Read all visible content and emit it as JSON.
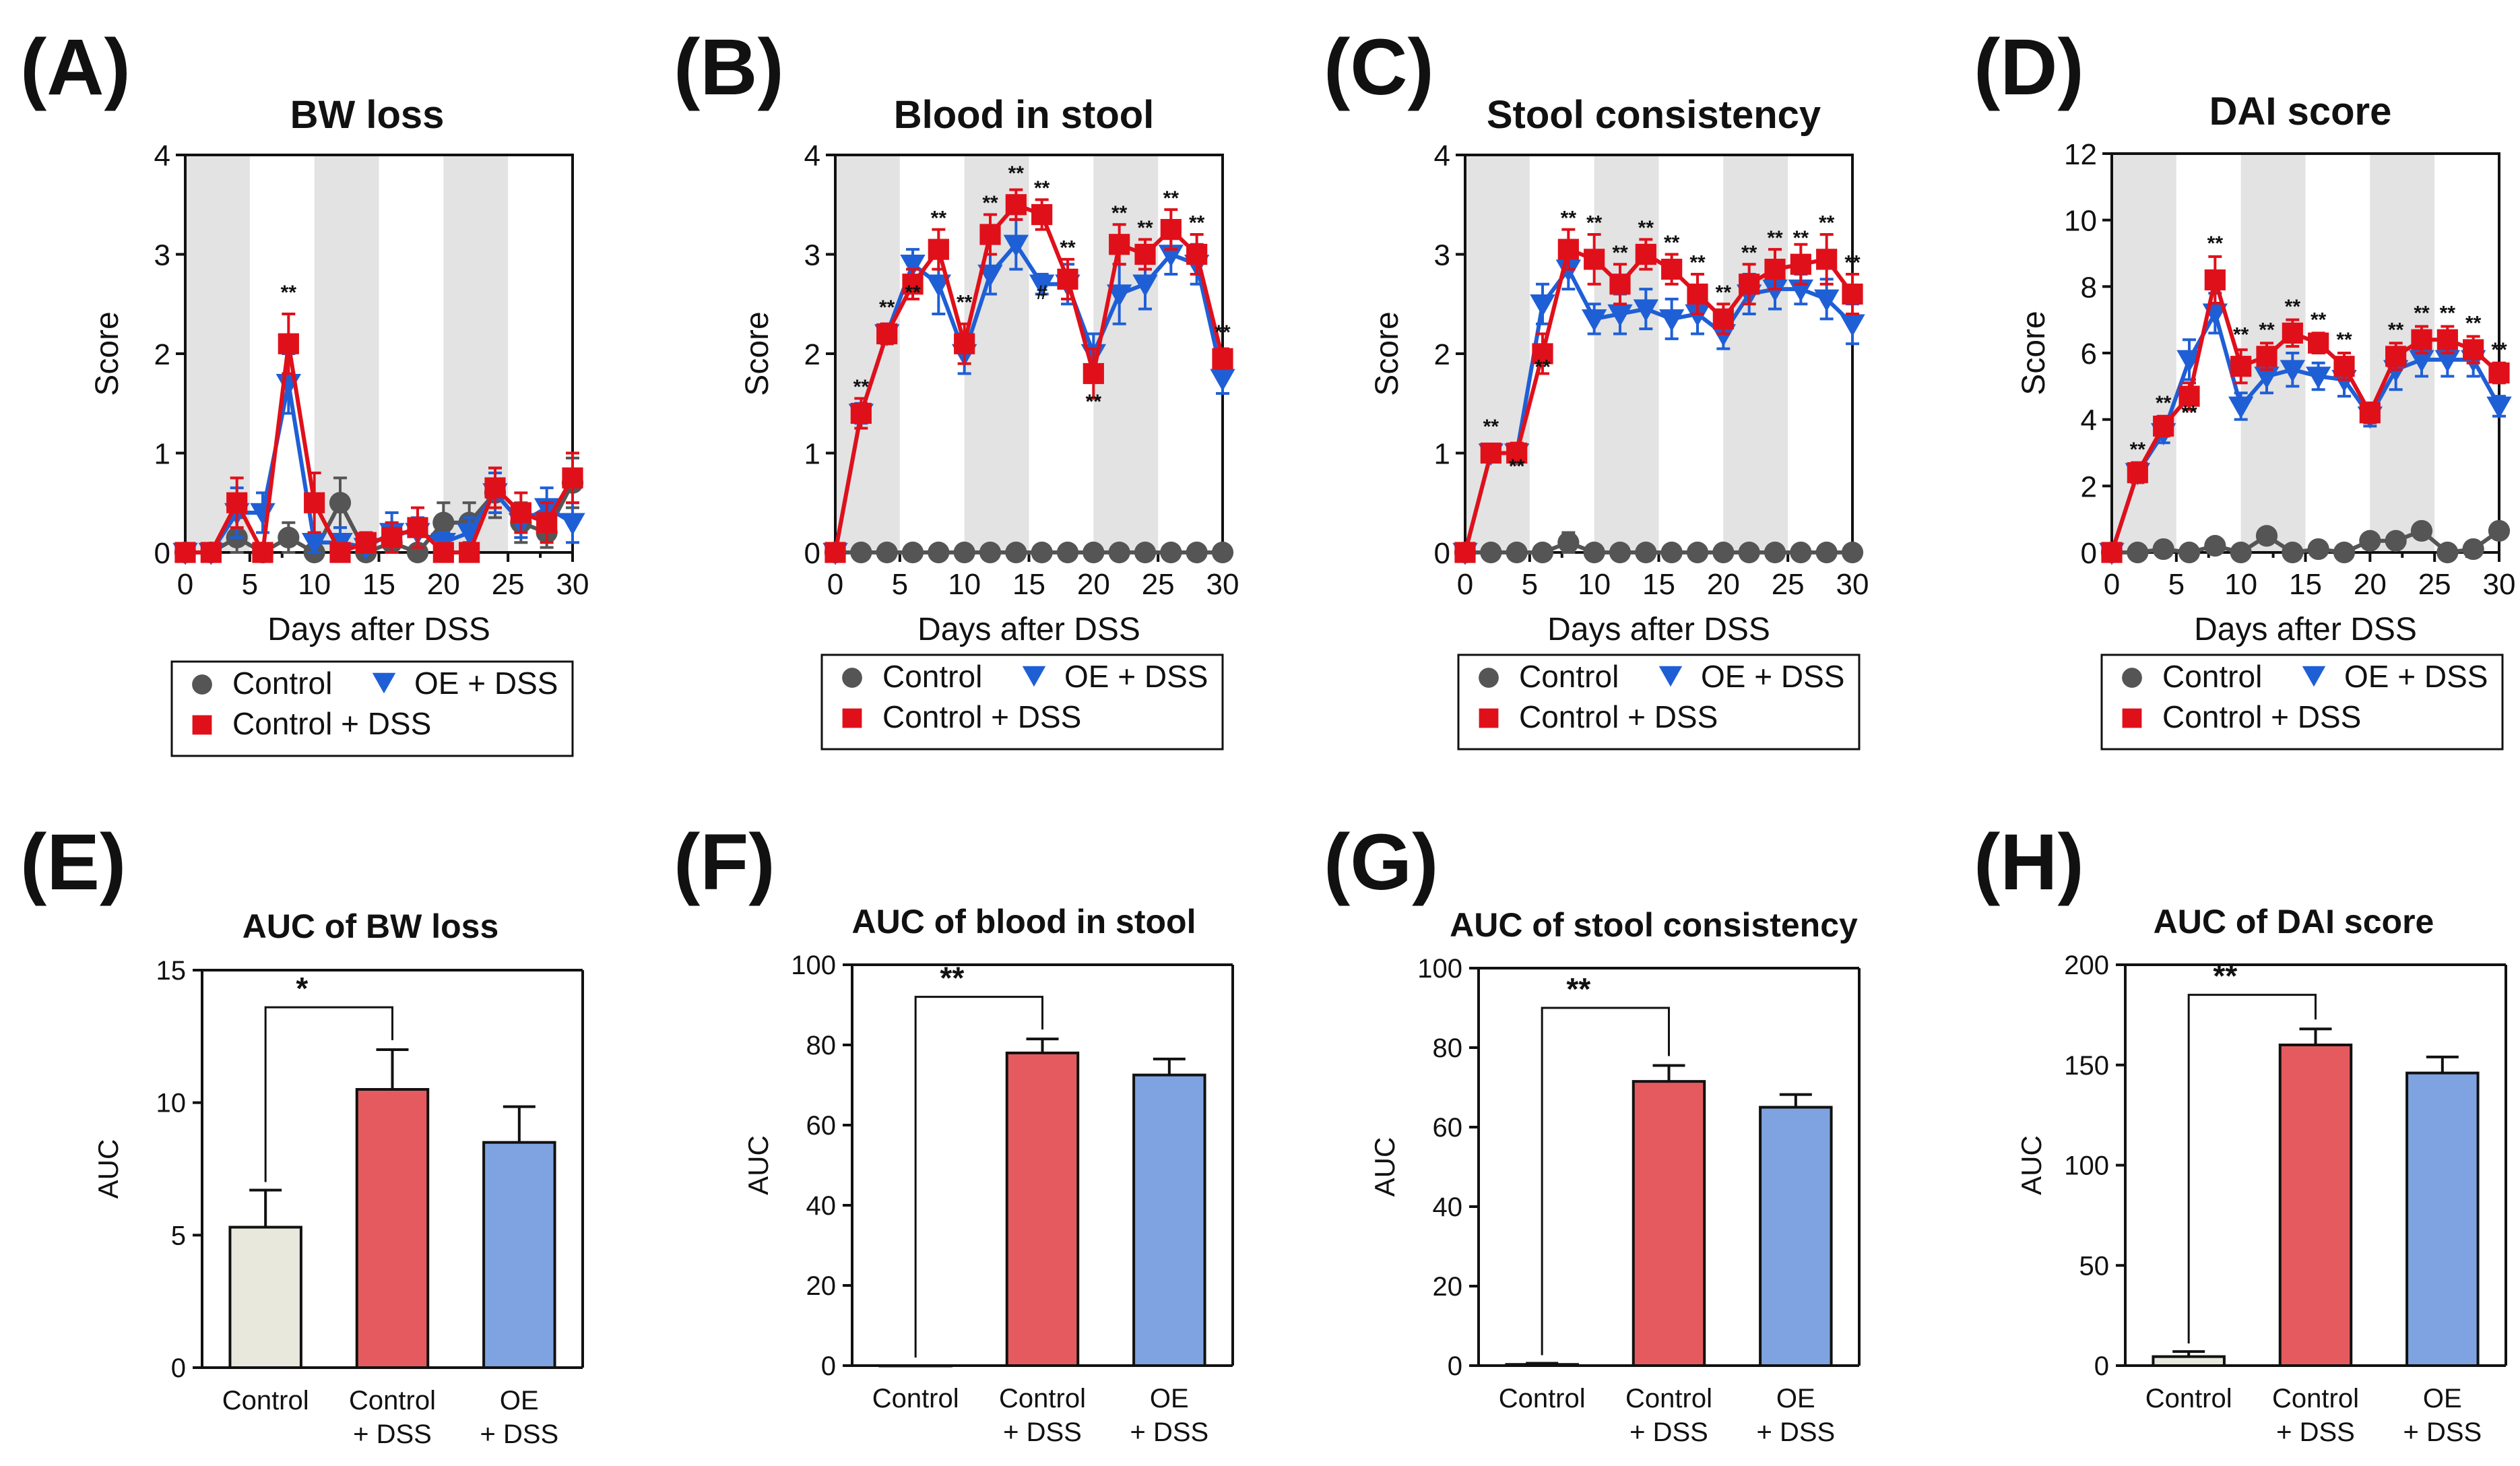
{
  "colors": {
    "control": "#555555",
    "oe_dss": "#1f5fd6",
    "control_dss": "#e0101a",
    "bar_control": "#e9e8dc",
    "bar_control_dss": "#e55a5e",
    "bar_oe_dss": "#7ea3e0",
    "shade": "#e3e3e3"
  },
  "legend": {
    "control": "Control",
    "oe_dss": "OE + DSS",
    "control_dss": "Control + DSS"
  },
  "chart_data": [
    {
      "panel": "(A)",
      "type": "line",
      "title": "BW loss",
      "xlabel": "Days after DSS",
      "ylabel": "Score",
      "xlim": [
        0,
        30
      ],
      "ylim": [
        0,
        4
      ],
      "xticks": [
        "0",
        "5",
        "10",
        "15",
        "20",
        "25",
        "30"
      ],
      "yticks": [
        "0",
        "1",
        "2",
        "3",
        "4"
      ],
      "shaded_days": [
        [
          0,
          5
        ],
        [
          10,
          15
        ],
        [
          20,
          25
        ]
      ],
      "x": [
        0,
        2,
        4,
        6,
        8,
        10,
        12,
        14,
        16,
        18,
        20,
        22,
        24,
        26,
        28,
        30
      ],
      "series": [
        {
          "name": "Control",
          "values": [
            0,
            0,
            0.15,
            0,
            0.15,
            0,
            0.5,
            0,
            0.1,
            0,
            0.3,
            0.3,
            0.6,
            0.3,
            0.2,
            0.7
          ],
          "errors": [
            0,
            0,
            0.2,
            0,
            0.15,
            0,
            0.25,
            0,
            0.1,
            0,
            0.2,
            0.2,
            0.25,
            0.2,
            0.15,
            0.25
          ]
        },
        {
          "name": "OE + DSS",
          "values": [
            0,
            0,
            0.4,
            0.4,
            1.7,
            0.1,
            0.1,
            0.05,
            0.2,
            0.2,
            0.1,
            0.2,
            0.6,
            0.3,
            0.45,
            0.3
          ],
          "errors": [
            0,
            0,
            0.25,
            0.2,
            0.3,
            0.1,
            0.15,
            0.1,
            0.2,
            0.15,
            0.1,
            0.15,
            0.2,
            0.15,
            0.2,
            0.2
          ]
        },
        {
          "name": "Control + DSS",
          "values": [
            0,
            0,
            0.5,
            0,
            2.1,
            0.5,
            0,
            0.1,
            0.15,
            0.25,
            0,
            0,
            0.65,
            0.4,
            0.3,
            0.75
          ],
          "errors": [
            0,
            0,
            0.25,
            0,
            0.3,
            0.3,
            0,
            0.1,
            0.15,
            0.2,
            0,
            0,
            0.2,
            0.2,
            0.2,
            0.25
          ]
        }
      ],
      "annotations": [
        {
          "x": 8,
          "y": 2.55,
          "text": "**"
        }
      ]
    },
    {
      "panel": "(B)",
      "type": "line",
      "title": "Blood in stool",
      "xlabel": "Days after DSS",
      "ylabel": "Score",
      "xlim": [
        0,
        30
      ],
      "ylim": [
        0,
        4
      ],
      "xticks": [
        "0",
        "5",
        "10",
        "15",
        "20",
        "25",
        "30"
      ],
      "yticks": [
        "0",
        "1",
        "2",
        "3",
        "4"
      ],
      "shaded_days": [
        [
          0,
          5
        ],
        [
          10,
          15
        ],
        [
          20,
          25
        ]
      ],
      "x": [
        0,
        2,
        4,
        6,
        8,
        10,
        12,
        14,
        16,
        18,
        20,
        22,
        24,
        26,
        28,
        30
      ],
      "series": [
        {
          "name": "Control",
          "values": [
            0,
            0,
            0,
            0,
            0,
            0,
            0,
            0,
            0,
            0,
            0,
            0,
            0,
            0,
            0,
            0
          ],
          "errors": [
            0,
            0,
            0,
            0,
            0,
            0,
            0,
            0,
            0,
            0,
            0,
            0,
            0,
            0,
            0,
            0
          ]
        },
        {
          "name": "OE + DSS",
          "values": [
            0,
            1.4,
            2.2,
            2.9,
            2.7,
            2.0,
            2.8,
            3.1,
            2.7,
            2.7,
            2.0,
            2.6,
            2.7,
            3.0,
            2.9,
            1.75
          ],
          "errors": [
            0,
            0.1,
            0.1,
            0.15,
            0.3,
            0.2,
            0.2,
            0.25,
            0.1,
            0.2,
            0.2,
            0.3,
            0.25,
            0.2,
            0.2,
            0.15
          ]
        },
        {
          "name": "Control + DSS",
          "values": [
            0,
            1.4,
            2.2,
            2.7,
            3.05,
            2.1,
            3.2,
            3.5,
            3.4,
            2.75,
            1.8,
            3.1,
            3.0,
            3.25,
            3.0,
            1.95
          ],
          "errors": [
            0,
            0.15,
            0.1,
            0.15,
            0.2,
            0.2,
            0.2,
            0.15,
            0.15,
            0.2,
            0.25,
            0.2,
            0.15,
            0.2,
            0.2,
            0.1
          ]
        }
      ],
      "annotations": [
        {
          "x": 2,
          "y": 1.6,
          "text": "**"
        },
        {
          "x": 4,
          "y": 2.4,
          "text": "**"
        },
        {
          "x": 6,
          "y": 2.55,
          "text": "**"
        },
        {
          "x": 8,
          "y": 3.3,
          "text": "**"
        },
        {
          "x": 10,
          "y": 2.45,
          "text": "**"
        },
        {
          "x": 12,
          "y": 3.45,
          "text": "**"
        },
        {
          "x": 14,
          "y": 3.75,
          "text": "**"
        },
        {
          "x": 16,
          "y": 2.55,
          "text": "#"
        },
        {
          "x": 16,
          "y": 3.6,
          "text": "**"
        },
        {
          "x": 18,
          "y": 3.0,
          "text": "**"
        },
        {
          "x": 20,
          "y": 1.45,
          "text": "**"
        },
        {
          "x": 22,
          "y": 3.35,
          "text": "**"
        },
        {
          "x": 24,
          "y": 3.2,
          "text": "**"
        },
        {
          "x": 26,
          "y": 3.5,
          "text": "**"
        },
        {
          "x": 28,
          "y": 3.25,
          "text": "**"
        },
        {
          "x": 30,
          "y": 2.15,
          "text": "**"
        }
      ]
    },
    {
      "panel": "(C)",
      "type": "line",
      "title": "Stool consistency",
      "xlabel": "Days after DSS",
      "ylabel": "Score",
      "xlim": [
        0,
        30
      ],
      "ylim": [
        0,
        4
      ],
      "xticks": [
        "0",
        "5",
        "10",
        "15",
        "20",
        "25",
        "30"
      ],
      "yticks": [
        "0",
        "1",
        "2",
        "3",
        "4"
      ],
      "shaded_days": [
        [
          0,
          5
        ],
        [
          10,
          15
        ],
        [
          20,
          25
        ]
      ],
      "x": [
        0,
        2,
        4,
        6,
        8,
        10,
        12,
        14,
        16,
        18,
        20,
        22,
        24,
        26,
        28,
        30
      ],
      "series": [
        {
          "name": "Control",
          "values": [
            0,
            0,
            0,
            0,
            0.1,
            0,
            0,
            0,
            0,
            0,
            0,
            0,
            0,
            0,
            0,
            0
          ],
          "errors": [
            0,
            0,
            0,
            0,
            0.1,
            0,
            0,
            0,
            0,
            0,
            0,
            0,
            0,
            0,
            0,
            0
          ]
        },
        {
          "name": "OE + DSS",
          "values": [
            0,
            1.0,
            1.0,
            2.5,
            2.85,
            2.35,
            2.4,
            2.45,
            2.35,
            2.4,
            2.2,
            2.6,
            2.65,
            2.65,
            2.55,
            2.3
          ],
          "errors": [
            0,
            0.05,
            0.1,
            0.2,
            0.2,
            0.15,
            0.2,
            0.2,
            0.2,
            0.2,
            0.15,
            0.2,
            0.2,
            0.15,
            0.2,
            0.2
          ]
        },
        {
          "name": "Control + DSS",
          "values": [
            0,
            1.0,
            1.0,
            2.0,
            3.05,
            2.95,
            2.7,
            3.0,
            2.85,
            2.6,
            2.35,
            2.7,
            2.85,
            2.9,
            2.95,
            2.6
          ],
          "errors": [
            0,
            0.05,
            0.1,
            0.2,
            0.2,
            0.25,
            0.2,
            0.15,
            0.15,
            0.2,
            0.15,
            0.2,
            0.2,
            0.2,
            0.25,
            0.2
          ]
        }
      ],
      "annotations": [
        {
          "x": 2,
          "y": 1.2,
          "text": "**"
        },
        {
          "x": 4,
          "y": 0.8,
          "text": "**"
        },
        {
          "x": 6,
          "y": 1.8,
          "text": "**"
        },
        {
          "x": 8,
          "y": 3.3,
          "text": "**"
        },
        {
          "x": 10,
          "y": 3.25,
          "text": "**"
        },
        {
          "x": 12,
          "y": 2.95,
          "text": "**"
        },
        {
          "x": 14,
          "y": 3.2,
          "text": "**"
        },
        {
          "x": 16,
          "y": 3.05,
          "text": "**"
        },
        {
          "x": 18,
          "y": 2.85,
          "text": "**"
        },
        {
          "x": 20,
          "y": 2.55,
          "text": "**"
        },
        {
          "x": 22,
          "y": 2.95,
          "text": "**"
        },
        {
          "x": 24,
          "y": 3.1,
          "text": "**"
        },
        {
          "x": 26,
          "y": 3.1,
          "text": "**"
        },
        {
          "x": 28,
          "y": 3.25,
          "text": "**"
        },
        {
          "x": 30,
          "y": 2.85,
          "text": "**"
        }
      ]
    },
    {
      "panel": "(D)",
      "type": "line",
      "title": "DAI score",
      "xlabel": "Days after DSS",
      "ylabel": "Score",
      "xlim": [
        0,
        30
      ],
      "ylim": [
        0,
        12
      ],
      "xticks": [
        "0",
        "5",
        "10",
        "15",
        "20",
        "25",
        "30"
      ],
      "yticks": [
        "0",
        "2",
        "4",
        "6",
        "8",
        "10",
        "12"
      ],
      "shaded_days": [
        [
          0,
          5
        ],
        [
          10,
          15
        ],
        [
          20,
          25
        ]
      ],
      "x": [
        0,
        2,
        4,
        6,
        8,
        10,
        12,
        14,
        16,
        18,
        20,
        22,
        24,
        26,
        28,
        30
      ],
      "series": [
        {
          "name": "Control",
          "values": [
            0,
            0,
            0.1,
            0,
            0.2,
            0,
            0.5,
            0,
            0.1,
            0,
            0.35,
            0.35,
            0.65,
            0,
            0.1,
            0.65
          ],
          "errors": [
            0,
            0,
            0.1,
            0,
            0.1,
            0,
            0.15,
            0,
            0.1,
            0,
            0.1,
            0.1,
            0.15,
            0,
            0.1,
            0.15
          ]
        },
        {
          "name": "OE + DSS",
          "values": [
            0,
            2.4,
            3.6,
            5.8,
            7.2,
            4.4,
            5.3,
            5.5,
            5.3,
            5.2,
            4.1,
            5.5,
            5.8,
            5.8,
            5.8,
            4.4
          ],
          "errors": [
            0,
            0.3,
            0.3,
            0.6,
            0.6,
            0.4,
            0.5,
            0.5,
            0.4,
            0.5,
            0.3,
            0.6,
            0.5,
            0.5,
            0.5,
            0.3
          ]
        },
        {
          "name": "Control + DSS",
          "values": [
            0,
            2.4,
            3.8,
            4.7,
            8.2,
            5.6,
            5.9,
            6.6,
            6.3,
            5.6,
            4.2,
            5.9,
            6.4,
            6.4,
            6.1,
            5.4
          ],
          "errors": [
            0,
            0.3,
            0.3,
            0.4,
            0.7,
            0.5,
            0.4,
            0.4,
            0.3,
            0.4,
            0.3,
            0.4,
            0.4,
            0.4,
            0.4,
            0.3
          ]
        }
      ],
      "annotations": [
        {
          "x": 2,
          "y": 2.9,
          "text": "**"
        },
        {
          "x": 4,
          "y": 4.3,
          "text": "**"
        },
        {
          "x": 6,
          "y": 4.0,
          "text": "**"
        },
        {
          "x": 8,
          "y": 9.1,
          "text": "**"
        },
        {
          "x": 10,
          "y": 6.35,
          "text": "**"
        },
        {
          "x": 12,
          "y": 6.5,
          "text": "**"
        },
        {
          "x": 14,
          "y": 7.2,
          "text": "**"
        },
        {
          "x": 16,
          "y": 6.8,
          "text": "**"
        },
        {
          "x": 18,
          "y": 6.2,
          "text": "**"
        },
        {
          "x": 22,
          "y": 6.5,
          "text": "**"
        },
        {
          "x": 24,
          "y": 7.0,
          "text": "**"
        },
        {
          "x": 26,
          "y": 7.0,
          "text": "**"
        },
        {
          "x": 28,
          "y": 6.7,
          "text": "**"
        },
        {
          "x": 30,
          "y": 5.9,
          "text": "**"
        }
      ]
    },
    {
      "panel": "(E)",
      "type": "bar",
      "title": "AUC of BW loss",
      "ylabel": "AUC",
      "ylim": [
        0,
        15
      ],
      "yticks": [
        "0",
        "5",
        "10",
        "15"
      ],
      "categories": [
        "Control",
        "Control + DSS",
        "OE + DSS"
      ],
      "category_lines": [
        [
          "Control"
        ],
        [
          "Control",
          "+ DSS"
        ],
        [
          "OE",
          "+ DSS"
        ]
      ],
      "values": [
        5.3,
        10.5,
        8.5
      ],
      "errors": [
        1.4,
        1.5,
        1.35
      ],
      "significance": {
        "from": 0,
        "to": 1,
        "label": "*",
        "level": 13.6
      }
    },
    {
      "panel": "(F)",
      "type": "bar",
      "title": "AUC of blood in stool",
      "ylabel": "AUC",
      "ylim": [
        0,
        100
      ],
      "yticks": [
        "0",
        "20",
        "40",
        "60",
        "80",
        "100"
      ],
      "categories": [
        "Control",
        "Control + DSS",
        "OE + DSS"
      ],
      "category_lines": [
        [
          "Control"
        ],
        [
          "Control",
          "+ DSS"
        ],
        [
          "OE",
          "+ DSS"
        ]
      ],
      "values": [
        0,
        78,
        72.5
      ],
      "errors": [
        0,
        3.5,
        4
      ],
      "significance": {
        "from": 0,
        "to": 1,
        "label": "**",
        "level": 92
      }
    },
    {
      "panel": "(G)",
      "type": "bar",
      "title": "AUC of stool consistency",
      "ylabel": "AUC",
      "ylim": [
        0,
        100
      ],
      "yticks": [
        "0",
        "20",
        "40",
        "60",
        "80",
        "100"
      ],
      "categories": [
        "Control",
        "Control + DSS",
        "OE + DSS"
      ],
      "category_lines": [
        [
          "Control"
        ],
        [
          "Control",
          "+ DSS"
        ],
        [
          "OE",
          "+ DSS"
        ]
      ],
      "values": [
        0.3,
        71.5,
        65
      ],
      "errors": [
        0.3,
        4,
        3.2
      ],
      "significance": {
        "from": 0,
        "to": 1,
        "label": "**",
        "level": 90
      }
    },
    {
      "panel": "(H)",
      "type": "bar",
      "title": "AUC of DAI score",
      "ylabel": "AUC",
      "ylim": [
        0,
        200
      ],
      "yticks": [
        "0",
        "50",
        "100",
        "150",
        "200"
      ],
      "categories": [
        "Control",
        "Control + DSS",
        "OE + DSS"
      ],
      "category_lines": [
        [
          "Control"
        ],
        [
          "Control",
          "+ DSS"
        ],
        [
          "OE",
          "+ DSS"
        ]
      ],
      "values": [
        4.5,
        160,
        146
      ],
      "errors": [
        2.5,
        8,
        8
      ],
      "significance": {
        "from": 0,
        "to": 1,
        "label": "**",
        "level": 185
      }
    }
  ]
}
